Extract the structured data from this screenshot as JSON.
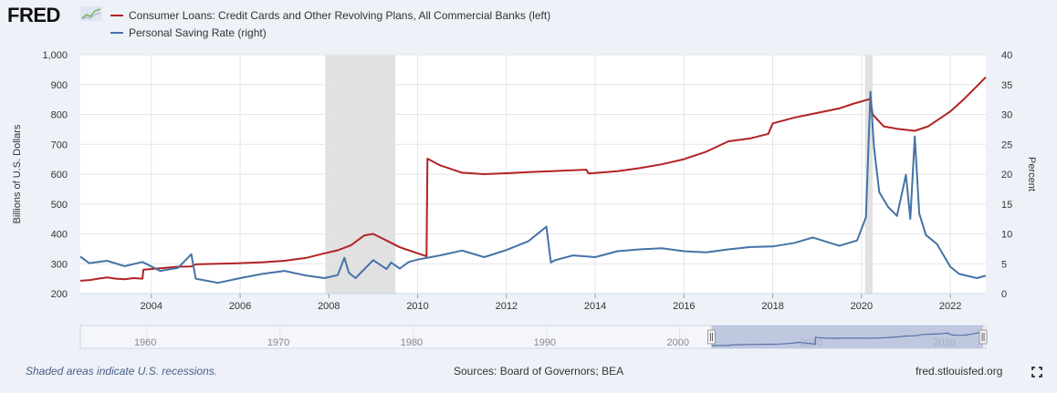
{
  "header": {
    "logo_text": "FRED",
    "logo_icon": "chart-line-icon",
    "legend": [
      {
        "label": "Consumer Loans: Credit Cards and Other Revolving Plans, All Commercial Banks (left)",
        "color": "#b22222"
      },
      {
        "label": "Personal Saving Rate (right)",
        "color": "#4572a7"
      }
    ]
  },
  "chart_data": {
    "type": "line",
    "title": "",
    "xlabel": "",
    "ylabel_left": "Billions of U.S. Dollars",
    "ylabel_right": "Percent",
    "ylim_left": [
      200,
      1000
    ],
    "ylim_right": [
      0,
      40
    ],
    "xlim": [
      2002.4,
      2022.8
    ],
    "y_ticks_left": [
      "200",
      "300",
      "400",
      "500",
      "600",
      "700",
      "800",
      "900",
      "1,000"
    ],
    "y_ticks_right": [
      "0",
      "5",
      "10",
      "15",
      "20",
      "25",
      "30",
      "35",
      "40"
    ],
    "x_ticks": [
      "2004",
      "2006",
      "2008",
      "2010",
      "2012",
      "2014",
      "2016",
      "2018",
      "2020",
      "2022"
    ],
    "recessions": [
      [
        2007.92,
        2009.5
      ],
      [
        2020.08,
        2020.25
      ]
    ],
    "series": [
      {
        "name": "Consumer Loans: Credit Cards and Other Revolving Plans, All Commercial Banks (left)",
        "axis": "left",
        "color": "#b22222",
        "x": [
          2002.4,
          2002.6,
          2002.8,
          2003.0,
          2003.2,
          2003.4,
          2003.6,
          2003.8,
          2003.82,
          2004.2,
          2004.6,
          2004.9,
          2005.0,
          2005.5,
          2006.0,
          2006.5,
          2007.0,
          2007.5,
          2007.9,
          2008.2,
          2008.5,
          2008.8,
          2009.0,
          2009.2,
          2009.4,
          2009.6,
          2009.8,
          2010.0,
          2010.2,
          2010.22,
          2010.5,
          2011.0,
          2011.5,
          2012.0,
          2012.5,
          2013.0,
          2013.8,
          2013.85,
          2014.5,
          2015.0,
          2015.5,
          2016.0,
          2016.5,
          2017.0,
          2017.5,
          2017.9,
          2018.0,
          2018.5,
          2019.0,
          2019.5,
          2019.8,
          2020.1,
          2020.2,
          2020.25,
          2020.5,
          2020.8,
          2021.2,
          2021.5,
          2021.8,
          2022.0,
          2022.3,
          2022.6,
          2022.8
        ],
        "values": [
          243,
          245,
          250,
          254,
          250,
          248,
          252,
          250,
          280,
          285,
          290,
          291,
          298,
          300,
          302,
          305,
          310,
          320,
          335,
          345,
          362,
          395,
          400,
          385,
          370,
          355,
          345,
          335,
          325,
          652,
          630,
          605,
          600,
          603,
          607,
          610,
          615,
          602,
          610,
          620,
          633,
          650,
          675,
          710,
          720,
          735,
          770,
          790,
          805,
          820,
          835,
          848,
          852,
          800,
          760,
          752,
          745,
          760,
          790,
          810,
          850,
          895,
          925
        ]
      },
      {
        "name": "Personal Saving Rate (right)",
        "axis": "right",
        "color": "#4572a7",
        "x": [
          2002.4,
          2002.6,
          2003.0,
          2003.4,
          2003.8,
          2004.2,
          2004.6,
          2004.9,
          2005.0,
          2005.5,
          2006.0,
          2006.5,
          2007.0,
          2007.5,
          2007.9,
          2008.2,
          2008.35,
          2008.45,
          2008.6,
          2009.0,
          2009.3,
          2009.4,
          2009.6,
          2009.8,
          2010.0,
          2010.5,
          2011.0,
          2011.5,
          2012.0,
          2012.5,
          2012.9,
          2013.0,
          2013.1,
          2013.5,
          2014.0,
          2014.5,
          2015.0,
          2015.5,
          2016.0,
          2016.5,
          2017.0,
          2017.5,
          2018.0,
          2018.5,
          2018.9,
          2019.5,
          2019.9,
          2020.1,
          2020.2,
          2020.28,
          2020.4,
          2020.6,
          2020.8,
          2021.0,
          2021.1,
          2021.2,
          2021.3,
          2021.45,
          2021.7,
          2022.0,
          2022.2,
          2022.6,
          2022.8
        ],
        "values": [
          6.2,
          5.1,
          5.5,
          4.6,
          5.3,
          3.8,
          4.3,
          6.6,
          2.5,
          1.8,
          2.6,
          3.3,
          3.8,
          3.0,
          2.6,
          3.1,
          6.0,
          3.5,
          2.6,
          5.6,
          4.1,
          5.2,
          4.2,
          5.3,
          5.7,
          6.4,
          7.2,
          6.1,
          7.3,
          8.8,
          11.2,
          5.2,
          5.6,
          6.4,
          6.1,
          7.1,
          7.4,
          7.6,
          7.1,
          6.9,
          7.4,
          7.8,
          7.9,
          8.5,
          9.4,
          8.0,
          8.9,
          12.8,
          33.8,
          24.5,
          17.0,
          14.5,
          13.0,
          19.9,
          12.5,
          26.3,
          13.4,
          9.8,
          8.3,
          4.5,
          3.3,
          2.6,
          3.0
        ]
      }
    ]
  },
  "navigator": {
    "x_ticks": [
      "1960",
      "1970",
      "1980",
      "1990",
      "2000",
      "2010",
      "2020"
    ]
  },
  "footer": {
    "recession_note": "Shaded areas indicate U.S. recessions.",
    "sources": "Sources: Board of Governors; BEA",
    "site": "fred.stlouisfed.org"
  }
}
